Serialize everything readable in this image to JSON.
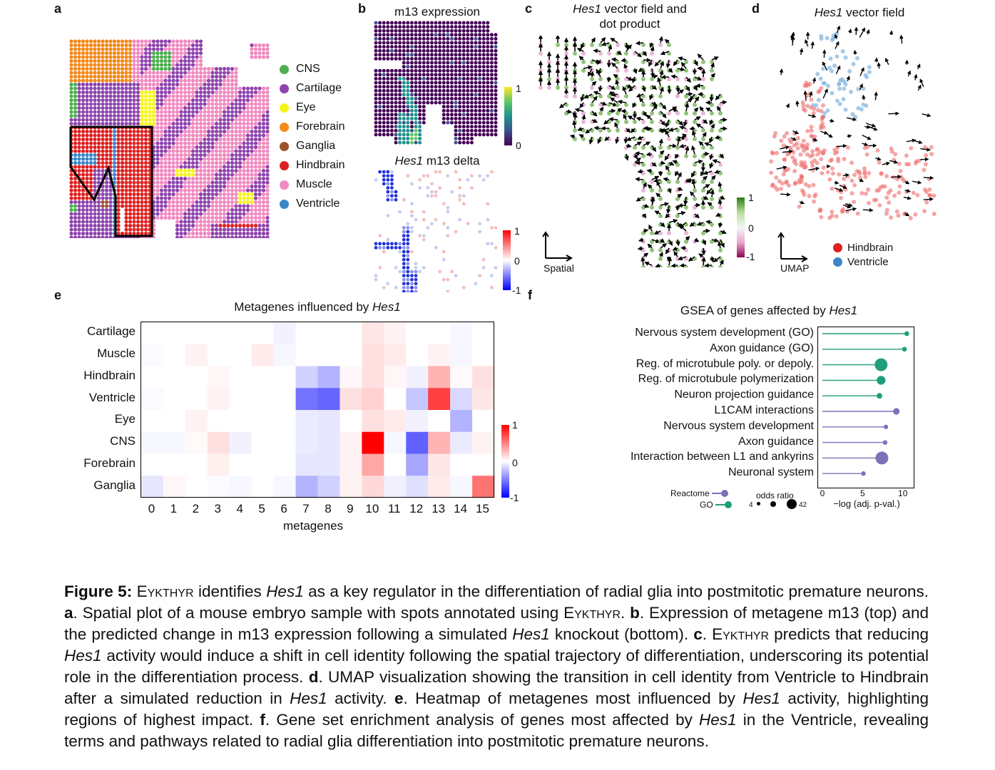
{
  "panel_labels": {
    "a": "a",
    "b": "b",
    "c": "c",
    "d": "d",
    "e": "e",
    "f": "f"
  },
  "panel_a": {
    "legend": [
      {
        "label": "CNS",
        "color": "#4caf50"
      },
      {
        "label": "Cartilage",
        "color": "#8e44ad"
      },
      {
        "label": "Eye",
        "color": "#f5f51c"
      },
      {
        "label": "Forebrain",
        "color": "#f28a1c"
      },
      {
        "label": "Ganglia",
        "color": "#a0522d"
      },
      {
        "label": "Hindbrain",
        "color": "#e02020"
      },
      {
        "label": "Muscle",
        "color": "#f08ac0"
      },
      {
        "label": "Ventricle",
        "color": "#3a86c8"
      }
    ]
  },
  "panel_b": {
    "top_title": "m13 expression",
    "top_scale": {
      "max": "1",
      "min": "0"
    },
    "bottom_title_italic": "Hes1",
    "bottom_title_rest": " m13 delta",
    "bottom_scale": {
      "max": "1",
      "mid": "0",
      "min": "-1"
    }
  },
  "panel_c": {
    "title_italic": "Hes1",
    "title_rest1": " vector field and",
    "title_line2": "dot product",
    "axis_label": "Spatial",
    "scale": {
      "max": "1",
      "mid": "0",
      "min": "-1"
    }
  },
  "panel_d": {
    "title_italic": "Hes1",
    "title_rest": " vector field",
    "axis_label": "UMAP",
    "legend": [
      {
        "label": "Hindbrain",
        "color": "#e02020"
      },
      {
        "label": "Ventricle",
        "color": "#3a86c8"
      }
    ]
  },
  "panel_e": {
    "title_pre": "Metagenes influenced by ",
    "title_italic": "Hes1",
    "xlabel": "metagenes",
    "scale": {
      "max": "1",
      "mid": "0",
      "min": "-1"
    }
  },
  "panel_f": {
    "title_pre": "GSEA of genes affected by ",
    "title_italic": "Hes1",
    "legend_source": [
      {
        "label": "Reactome",
        "color": "#7b72b8"
      },
      {
        "label": "GO",
        "color": "#1f9e7a"
      }
    ],
    "odds_ratio_label": "odds ratio",
    "odds_ratio_min": "4",
    "odds_ratio_max": "42"
  },
  "chart_data": [
    {
      "type": "heatmap",
      "title": "Metagenes influenced by Hes1",
      "xlabel": "metagenes",
      "ylabel": "",
      "rows": [
        "Cartilage",
        "Muscle",
        "Hindbrain",
        "Ventricle",
        "Eye",
        "CNS",
        "Forebrain",
        "Ganglia"
      ],
      "columns": [
        "0",
        "1",
        "2",
        "3",
        "4",
        "5",
        "6",
        "7",
        "8",
        "9",
        "10",
        "11",
        "12",
        "13",
        "14",
        "15"
      ],
      "values": [
        [
          0.0,
          0.0,
          0.0,
          0.0,
          0.0,
          0.0,
          -0.05,
          0.0,
          0.0,
          0.0,
          0.1,
          0.05,
          0.0,
          0.0,
          -0.03,
          0.0
        ],
        [
          -0.02,
          0.0,
          0.05,
          0.0,
          0.0,
          0.08,
          -0.03,
          0.0,
          0.0,
          0.0,
          0.12,
          0.08,
          0.0,
          0.05,
          -0.03,
          0.0
        ],
        [
          0.0,
          0.0,
          0.0,
          0.03,
          0.0,
          0.0,
          0.0,
          -0.18,
          -0.3,
          0.03,
          0.12,
          0.03,
          -0.05,
          0.3,
          0.02,
          0.12
        ],
        [
          -0.02,
          0.0,
          0.0,
          0.05,
          0.0,
          0.0,
          0.0,
          -0.55,
          -0.6,
          0.12,
          0.18,
          0.0,
          -0.22,
          0.75,
          -0.15,
          0.1
        ],
        [
          0.0,
          0.0,
          0.05,
          0.0,
          0.0,
          0.0,
          0.0,
          -0.08,
          -0.1,
          0.0,
          0.12,
          0.08,
          -0.05,
          0.0,
          -0.3,
          0.0
        ],
        [
          -0.03,
          -0.03,
          0.02,
          0.12,
          -0.05,
          0.0,
          0.0,
          -0.08,
          -0.1,
          0.05,
          1.0,
          -0.03,
          -0.62,
          0.3,
          -0.08,
          0.05
        ],
        [
          0.0,
          0.0,
          0.0,
          0.06,
          0.0,
          0.0,
          0.0,
          -0.1,
          -0.1,
          0.05,
          0.35,
          0.0,
          -0.35,
          0.1,
          0.0,
          0.0
        ],
        [
          -0.1,
          0.03,
          0.0,
          -0.02,
          -0.03,
          0.0,
          -0.03,
          -0.3,
          -0.18,
          0.05,
          0.15,
          -0.06,
          -0.12,
          0.08,
          -0.03,
          0.55
        ]
      ],
      "color_scale": {
        "min": -1,
        "max": 1,
        "colors": [
          "#0000ff",
          "#ffffff",
          "#ff0000"
        ]
      }
    },
    {
      "type": "scatter",
      "title": "GSEA of genes affected by Hes1",
      "xlabel": "−log (adj. p-val.)",
      "xlim": [
        0,
        11
      ],
      "xticks": [
        "0",
        "5",
        "10"
      ],
      "categories": [
        "Nervous system development (GO)",
        "Axon guidance (GO)",
        "Reg. of microtubule poly. or depoly.",
        "Reg. of microtubule polymerization",
        "Neuron projection guidance",
        "L1CAM interactions",
        "Nervous system development",
        "Axon guidance",
        "Interaction between L1 and ankyrins",
        "Neuronal system"
      ],
      "values": [
        10.5,
        10.2,
        7.3,
        7.3,
        7.1,
        9.2,
        7.9,
        7.8,
        7.4,
        5.1
      ],
      "odds_ratio": [
        6,
        6,
        42,
        24,
        10,
        14,
        5,
        5,
        42,
        5
      ],
      "source": [
        "GO",
        "GO",
        "GO",
        "GO",
        "GO",
        "Reactome",
        "Reactome",
        "Reactome",
        "Reactome",
        "Reactome"
      ]
    }
  ],
  "caption": {
    "label": "Figure 5:",
    "p1_sc": "Eykthyr",
    "p2": " identifies ",
    "p3_it": "Hes1",
    "p4": " as a key regulator in the differentiation of radial glia into postmitotic premature neurons. ",
    "a_lbl": "a",
    "a_txt": ". Spatial plot of a mouse embryo sample with spots annotated using ",
    "a_sc": "Eykthyr",
    "a_end": ". ",
    "b_lbl": "b",
    "b_txt": ". Expression of metagene m13 (top) and the predicted change in m13 expression following a simulated ",
    "b_it": "Hes1",
    "b_end": " knockout (bottom). ",
    "c_lbl": "c",
    "c_dot": ". ",
    "c_sc": "Eykthyr",
    "c_txt": " predicts that reducing ",
    "c_it": "Hes1",
    "c_end": " activity would induce a shift in cell identity following the spatial trajectory of differentiation, underscoring its potential role in the differentiation process. ",
    "d_lbl": "d",
    "d_txt": ". UMAP visualization showing the transition in cell identity from Ventricle to Hindbrain after a simulated reduction in ",
    "d_it": "Hes1",
    "d_end": " activity. ",
    "e_lbl": "e",
    "e_txt": ". Heatmap of metagenes most influenced by ",
    "e_it": "Hes1",
    "e_end": " activity, highlighting regions of highest impact. ",
    "f_lbl": "f",
    "f_txt": ". Gene set enrichment analysis of genes most affected by ",
    "f_it": "Hes1",
    "f_end": " in the Ventricle, revealing terms and pathways related to radial glia differentiation into postmitotic premature neurons."
  }
}
